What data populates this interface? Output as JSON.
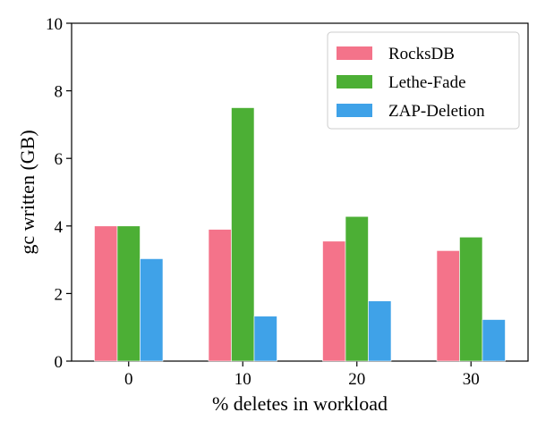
{
  "chart_data": {
    "type": "bar",
    "title": "",
    "xlabel": "% deletes in workload",
    "ylabel": "gc written (GB)",
    "categories": [
      "0",
      "10",
      "20",
      "30"
    ],
    "ylim": [
      0,
      10
    ],
    "yticks": [
      "0",
      "2",
      "4",
      "6",
      "8",
      "10"
    ],
    "grid": false,
    "legend": "top-right",
    "series": [
      {
        "name": "RocksDB",
        "color": "#f4738a",
        "values": [
          4.0,
          3.9,
          3.55,
          3.27
        ]
      },
      {
        "name": "Lethe-Fade",
        "color": "#4caf35",
        "values": [
          4.0,
          7.5,
          4.28,
          3.67
        ]
      },
      {
        "name": "ZAP-Deletion",
        "color": "#3fa2e8",
        "values": [
          3.03,
          1.33,
          1.78,
          1.23
        ]
      }
    ]
  }
}
